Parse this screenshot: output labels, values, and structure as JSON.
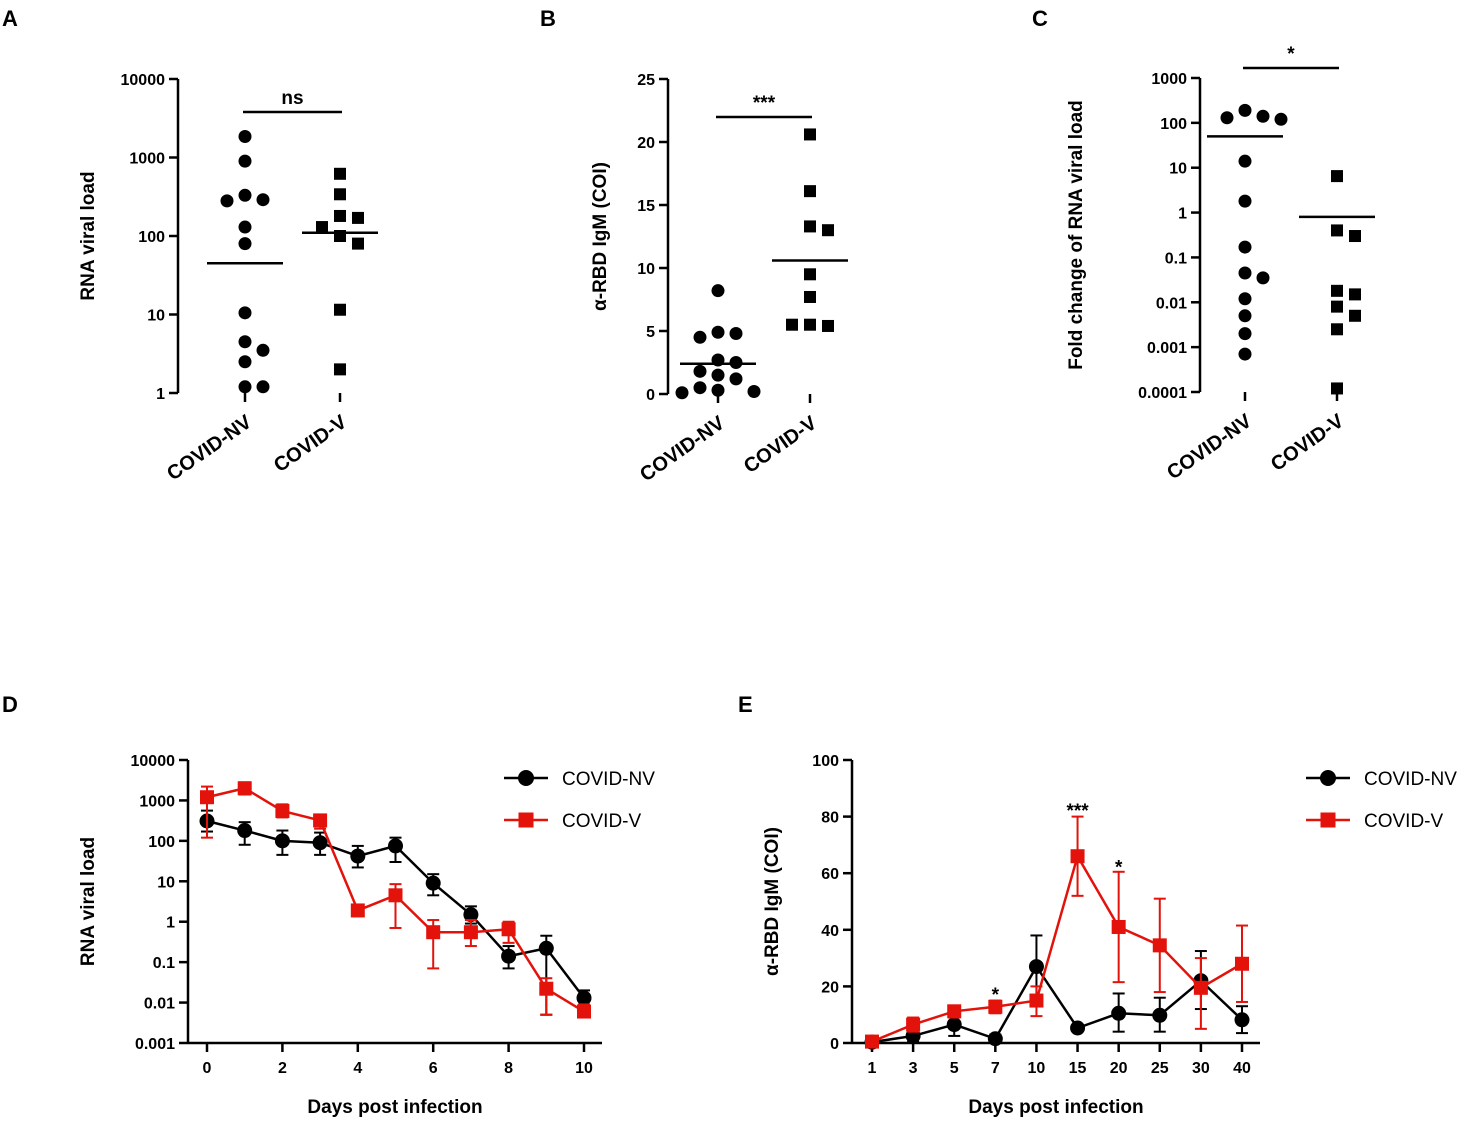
{
  "chart_data": [
    {
      "panel": "A",
      "type": "scatter",
      "scale": "log",
      "ylabel": "RNA viral load",
      "ylim": [
        1,
        10000
      ],
      "yticks": [
        "1",
        "10",
        "100",
        "1000",
        "10000"
      ],
      "categories": [
        "COVID-NV",
        "COVID-V"
      ],
      "significance": "ns",
      "groups": [
        {
          "name": "COVID-NV",
          "marker": "circle",
          "mean": 45,
          "points": [
            1850,
            900,
            330,
            290,
            280,
            130,
            80,
            10.5,
            4.5,
            3.5,
            2.5,
            1.2,
            1.2
          ]
        },
        {
          "name": "COVID-V",
          "marker": "square",
          "mean": 110,
          "points": [
            620,
            340,
            180,
            170,
            130,
            100,
            80,
            11.5,
            2
          ]
        }
      ]
    },
    {
      "panel": "B",
      "type": "scatter",
      "scale": "linear",
      "ylabel": "α-RBD IgM (COI)",
      "ylim": [
        0,
        25
      ],
      "yticks": [
        "0",
        "5",
        "10",
        "15",
        "20",
        "25"
      ],
      "categories": [
        "COVID-NV",
        "COVID-V"
      ],
      "significance": "***",
      "groups": [
        {
          "name": "COVID-NV",
          "marker": "circle",
          "mean": 2.4,
          "points": [
            8.2,
            4.9,
            4.8,
            4.5,
            2.7,
            2.5,
            1.8,
            1.5,
            1.2,
            0.5,
            0.3,
            0.2,
            0.1
          ]
        },
        {
          "name": "COVID-V",
          "marker": "square",
          "mean": 10.6,
          "points": [
            20.6,
            16.1,
            13.3,
            13.0,
            9.5,
            7.7,
            5.5,
            5.4,
            5.5
          ]
        }
      ]
    },
    {
      "panel": "C",
      "type": "scatter",
      "scale": "log",
      "ylabel": "Fold change of RNA viral load",
      "ylim": [
        0.0001,
        1000
      ],
      "yticks": [
        "0.0001",
        "0.001",
        "0.01",
        "0.1",
        "1",
        "10",
        "100",
        "1000"
      ],
      "categories": [
        "COVID-NV",
        "COVID-V"
      ],
      "significance": "*",
      "groups": [
        {
          "name": "COVID-NV",
          "marker": "circle",
          "mean": 50,
          "points": [
            190,
            140,
            130,
            120,
            14,
            1.8,
            0.17,
            0.045,
            0.035,
            0.012,
            0.005,
            0.002,
            0.0007
          ]
        },
        {
          "name": "COVID-V",
          "marker": "square",
          "mean": 0.8,
          "points": [
            6.5,
            0.4,
            0.3,
            0.018,
            0.015,
            0.008,
            0.005,
            0.0025,
            0.00012
          ]
        }
      ]
    },
    {
      "panel": "D",
      "type": "line",
      "scale": "log",
      "xlabel": "Days post infection",
      "ylabel": "RNA viral load",
      "ylim": [
        0.001,
        10000
      ],
      "yticks": [
        "0.001",
        "0.01",
        "0.1",
        "1",
        "10",
        "100",
        "1000",
        "10000"
      ],
      "xticks": [
        "0",
        "2",
        "4",
        "6",
        "8",
        "10"
      ],
      "x": [
        0,
        1,
        2,
        3,
        4,
        5,
        6,
        7,
        8,
        9,
        10
      ],
      "series": [
        {
          "name": "COVID-NV",
          "color": "#000000",
          "marker": "circle",
          "values": [
            310,
            180,
            100,
            90,
            42,
            75,
            9,
            1.5,
            0.14,
            0.22,
            0.013
          ],
          "err_lo": [
            170,
            80,
            45,
            45,
            22,
            30,
            4.5,
            0.9,
            0.07,
            0.005,
            0.008
          ],
          "err_hi": [
            560,
            290,
            180,
            160,
            75,
            120,
            15,
            2.4,
            0.25,
            0.45,
            0.02
          ]
        },
        {
          "name": "COVID-V",
          "color": "#e3120b",
          "marker": "square",
          "values": [
            1200,
            2000,
            550,
            320,
            1.9,
            4.5,
            0.55,
            0.55,
            0.65,
            0.022,
            0.006
          ],
          "err_lo": [
            120,
            1400,
            380,
            200,
            1.4,
            0.7,
            0.07,
            0.25,
            0.3,
            0.005,
            0.0048
          ],
          "err_hi": [
            2200,
            2800,
            800,
            450,
            2.6,
            8.5,
            1.1,
            1.1,
            1.0,
            0.04,
            0.009
          ]
        }
      ]
    },
    {
      "panel": "E",
      "type": "line",
      "scale": "linear",
      "xlabel": "Days post  infection",
      "ylabel": "α-RBD IgM (COI)",
      "ylim": [
        0,
        100
      ],
      "yticks": [
        "0",
        "20",
        "40",
        "60",
        "80",
        "100"
      ],
      "categories": [
        "1",
        "3",
        "5",
        "7",
        "10",
        "15",
        "20",
        "25",
        "30",
        "40"
      ],
      "annotations": [
        {
          "text": "*",
          "category": "7",
          "value": 17
        },
        {
          "text": "***",
          "category": "15",
          "value": 82
        },
        {
          "text": "*",
          "category": "20",
          "value": 62
        }
      ],
      "series": [
        {
          "name": "COVID-NV",
          "color": "#000000",
          "marker": "circle",
          "values": [
            0.3,
            2.5,
            6.5,
            1.5,
            27,
            5.3,
            10.5,
            9.8,
            22,
            8.2
          ],
          "err_lo": [
            0,
            0.5,
            2.5,
            0.5,
            16,
            4.5,
            4,
            4,
            12,
            3.5
          ],
          "err_hi": [
            0.8,
            5,
            11,
            3,
            38,
            6,
            17.5,
            16,
            32.5,
            13
          ]
        },
        {
          "name": "COVID-V",
          "color": "#e3120b",
          "marker": "square",
          "values": [
            0.5,
            6.5,
            11.2,
            12.8,
            15,
            66,
            41,
            34.5,
            19.5,
            28
          ],
          "err_lo": [
            0,
            4,
            9,
            10.5,
            9.5,
            52,
            21.5,
            18,
            5,
            14.5
          ],
          "err_hi": [
            1,
            9,
            13,
            15,
            20,
            80,
            60.5,
            51,
            30,
            41.5
          ]
        }
      ]
    }
  ]
}
